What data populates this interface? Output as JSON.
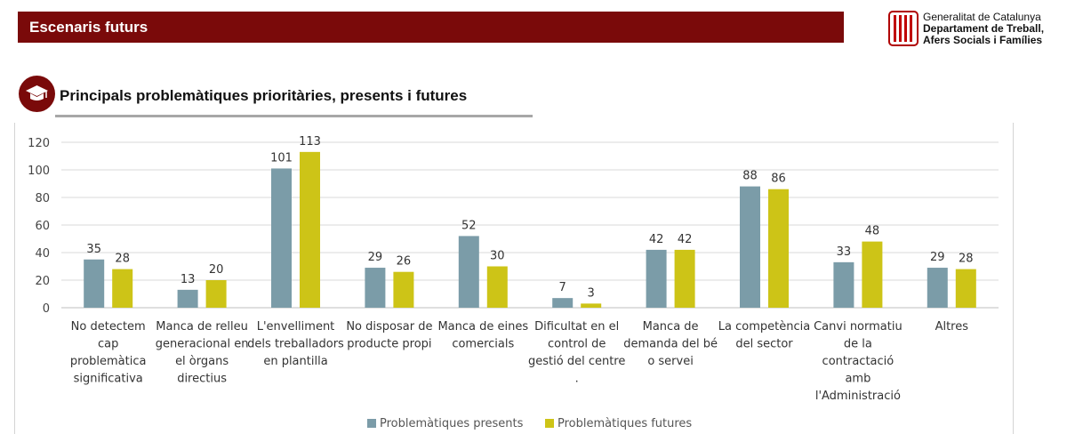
{
  "header": {
    "title": "Escenaris futurs"
  },
  "logo": {
    "line1": "Generalitat de Catalunya",
    "line2": "Departament de Treball,",
    "line3": "Afers Socials i Famílies"
  },
  "section": {
    "title": "Principals problemàtiques prioritàries, presents i futures",
    "icon": "graduation-cap-icon"
  },
  "colors": {
    "header": "#7a0a0a",
    "series_present": "#7b9ca8",
    "series_future": "#cdc417",
    "grid": "#d9d9d9"
  },
  "chart_data": {
    "type": "bar",
    "categories": [
      [
        "No detectem",
        "cap",
        "problemàtica",
        "significativa"
      ],
      [
        "Manca de relleu",
        "generacional en",
        "el òrgans",
        "directius"
      ],
      [
        "L'envelliment",
        "dels treballadors",
        "en plantilla"
      ],
      [
        "No disposar de",
        "producte propi"
      ],
      [
        "Manca de eines",
        "comercials"
      ],
      [
        "Dificultat en el",
        "control de",
        "gestió del centre",
        "."
      ],
      [
        "Manca de",
        "demanda del bé",
        "o servei"
      ],
      [
        "La competència",
        "del sector"
      ],
      [
        "Canvi normatiu",
        "de la",
        "contractació",
        "amb",
        "l'Administració"
      ],
      [
        "Altres"
      ]
    ],
    "series": [
      {
        "name": "Problemàtiques presents",
        "values": [
          35,
          13,
          101,
          29,
          52,
          7,
          42,
          88,
          33,
          29
        ]
      },
      {
        "name": "Problemàtiques futures",
        "values": [
          28,
          20,
          113,
          26,
          30,
          3,
          42,
          86,
          48,
          28
        ]
      }
    ],
    "ylim": [
      0,
      120
    ],
    "yticks": [
      0,
      20,
      40,
      60,
      80,
      100,
      120
    ],
    "grid": true,
    "legend": "bottom",
    "data_labels": true
  }
}
